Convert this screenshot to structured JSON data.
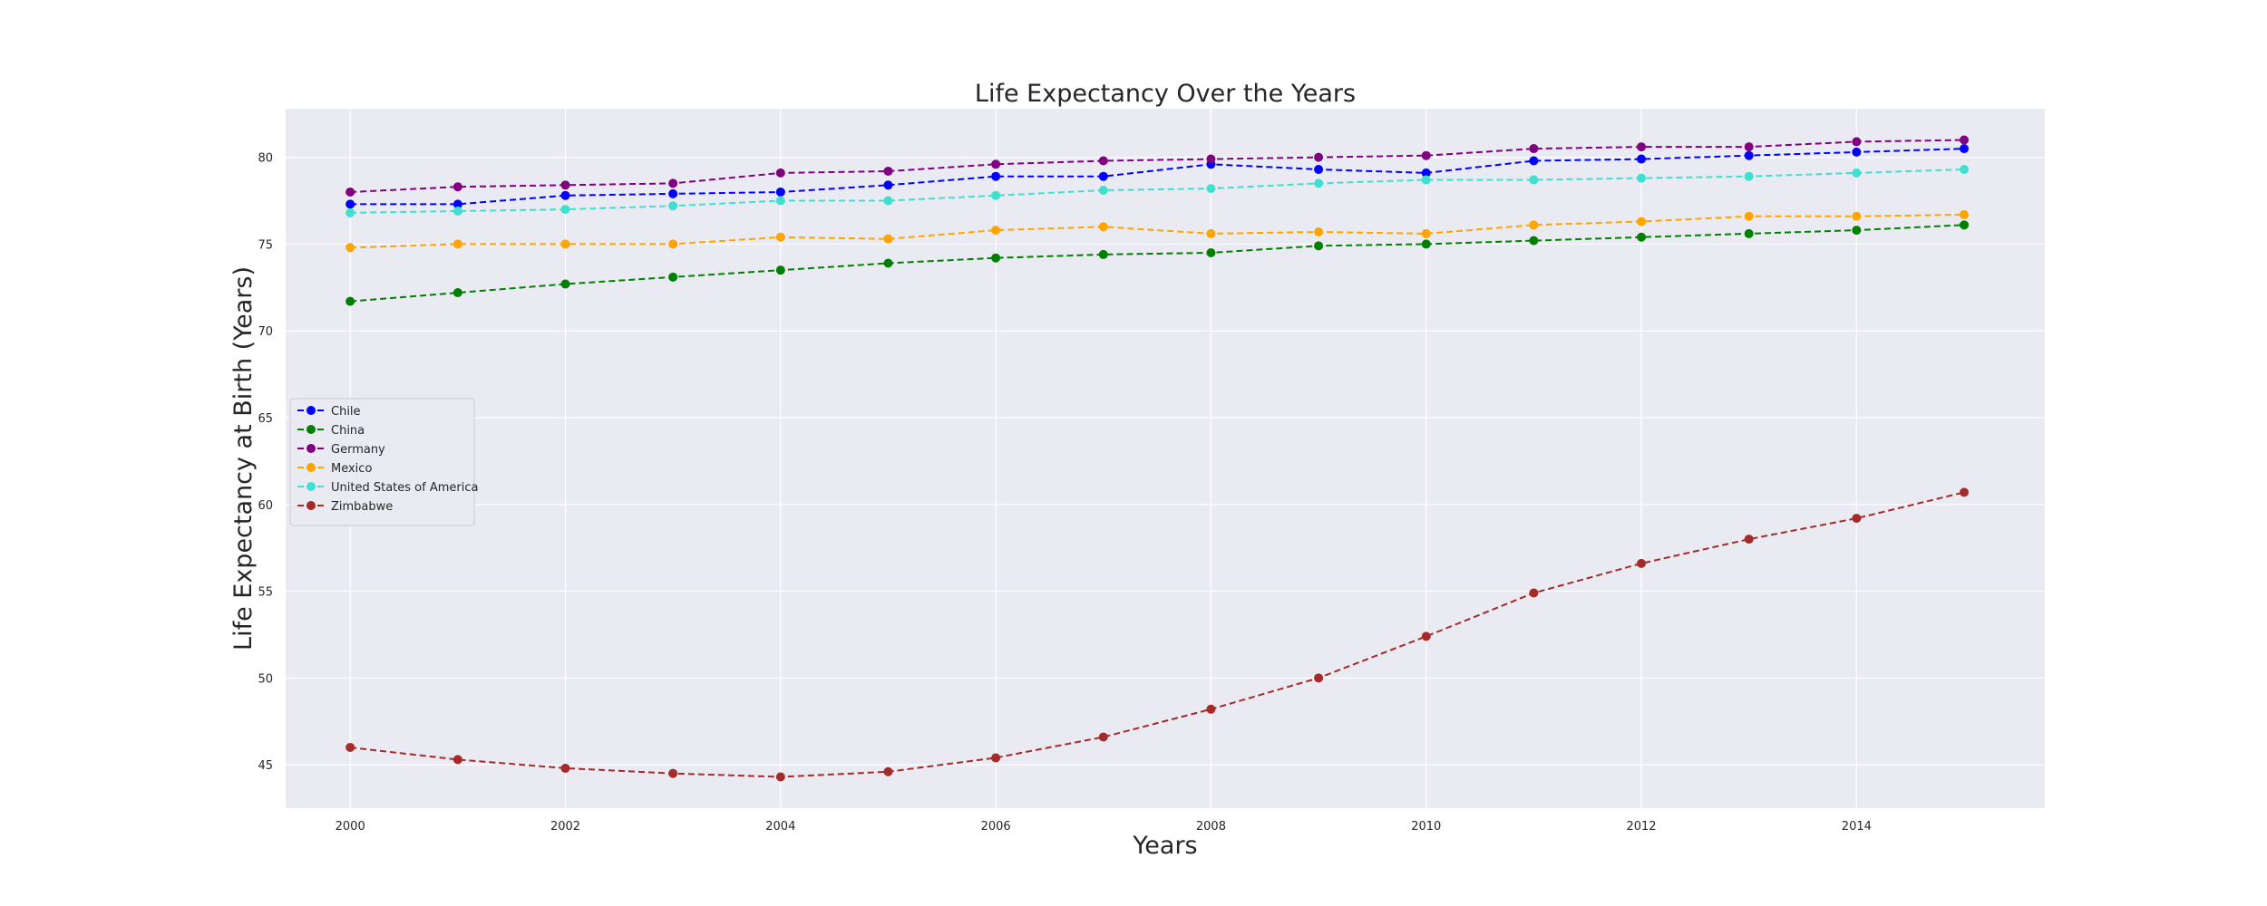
{
  "chart_data": {
    "type": "line",
    "title": "Life Expectancy Over the Years",
    "xlabel": "Years",
    "ylabel": "Life Expectancy at Birth (Years)",
    "x": [
      2000,
      2001,
      2002,
      2003,
      2004,
      2005,
      2006,
      2007,
      2008,
      2009,
      2010,
      2011,
      2012,
      2013,
      2014,
      2015
    ],
    "xticks": [
      2000,
      2002,
      2004,
      2006,
      2008,
      2010,
      2012,
      2014
    ],
    "yticks": [
      45,
      50,
      55,
      60,
      65,
      70,
      75,
      80
    ],
    "xlim": [
      1999.4,
      2015.75
    ],
    "ylim": [
      42.5,
      82.8
    ],
    "grid": true,
    "legend_position": "center-left",
    "line_style": "dashed",
    "marker": "circle",
    "background_color": "#eaeaf2",
    "series": [
      {
        "name": "Chile",
        "color": "#0000ff",
        "values": [
          77.3,
          77.3,
          77.8,
          77.9,
          78.0,
          78.4,
          78.9,
          78.9,
          79.6,
          79.3,
          79.1,
          79.8,
          79.9,
          80.1,
          80.3,
          80.5
        ]
      },
      {
        "name": "China",
        "color": "#008000",
        "values": [
          71.7,
          72.2,
          72.7,
          73.1,
          73.5,
          73.9,
          74.2,
          74.4,
          74.5,
          74.9,
          75.0,
          75.2,
          75.4,
          75.6,
          75.8,
          76.1
        ]
      },
      {
        "name": "Germany",
        "color": "#800080",
        "values": [
          78.0,
          78.3,
          78.4,
          78.5,
          79.1,
          79.2,
          79.6,
          79.8,
          79.9,
          80.0,
          80.1,
          80.5,
          80.6,
          80.6,
          80.9,
          81.0
        ]
      },
      {
        "name": "Mexico",
        "color": "#ffa500",
        "values": [
          74.8,
          75.0,
          75.0,
          75.0,
          75.4,
          75.3,
          75.8,
          76.0,
          75.6,
          75.7,
          75.6,
          76.1,
          76.3,
          76.6,
          76.6,
          76.7
        ]
      },
      {
        "name": "United States of America",
        "color": "#40e0d0",
        "values": [
          76.8,
          76.9,
          77.0,
          77.2,
          77.5,
          77.5,
          77.8,
          78.1,
          78.2,
          78.5,
          78.7,
          78.7,
          78.8,
          78.9,
          79.1,
          79.3
        ]
      },
      {
        "name": "Zimbabwe",
        "color": "#a52a2a",
        "values": [
          46.0,
          45.3,
          44.8,
          44.5,
          44.3,
          44.6,
          45.4,
          46.6,
          48.2,
          50.0,
          52.4,
          54.9,
          56.6,
          58.0,
          59.2,
          60.7
        ]
      }
    ]
  }
}
